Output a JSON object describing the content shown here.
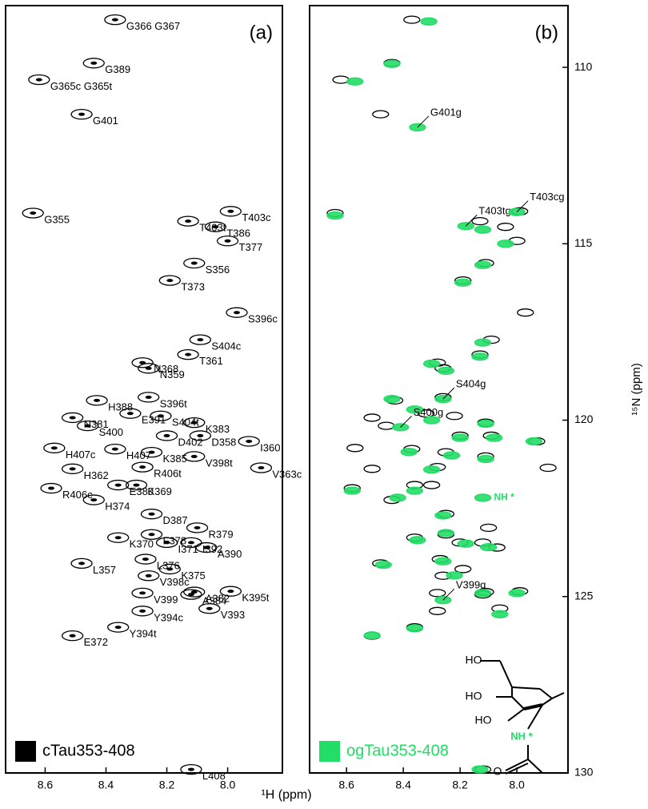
{
  "xlabel": "¹H (ppm)",
  "ylabel": "¹⁵N (ppm)",
  "chart_data": [
    {
      "type": "scatter",
      "panel_label": "(a)",
      "legend": "cTau353-408",
      "color": "#000000",
      "xlim": [
        8.73,
        7.82
      ],
      "ylim": [
        108.25,
        130.0
      ],
      "xticks": [
        8.6,
        8.4,
        8.2,
        {
          "value": 8,
          "label": "8.0"
        }
      ],
      "x": [
        8.37,
        8.44,
        8.62,
        8.48,
        8.64,
        7.99,
        8.13,
        8.04,
        8.0,
        8.11,
        8.19,
        7.97,
        8.09,
        8.13,
        8.28,
        8.26,
        8.43,
        8.26,
        8.32,
        8.22,
        8.11,
        8.51,
        8.46,
        8.2,
        8.09,
        7.93,
        8.57,
        8.37,
        8.25,
        8.11,
        8.51,
        8.28,
        7.89,
        8.58,
        8.36,
        8.3,
        8.44,
        8.25,
        8.25,
        8.2,
        8.1,
        8.12,
        8.36,
        8.07,
        8.27,
        8.19,
        8.48,
        8.26,
        8.11,
        7.99,
        8.28,
        8.12,
        8.28,
        8.06,
        8.36,
        8.51,
        8.12
      ],
      "y": [
        108.65,
        109.88,
        110.35,
        111.33,
        114.13,
        114.08,
        114.36,
        114.52,
        114.92,
        115.55,
        116.04,
        116.95,
        117.72,
        118.14,
        118.37,
        118.53,
        119.44,
        119.35,
        119.81,
        119.88,
        120.07,
        119.93,
        120.16,
        120.44,
        120.44,
        120.6,
        120.79,
        120.82,
        120.91,
        121.03,
        121.38,
        121.33,
        121.35,
        121.93,
        121.84,
        121.84,
        122.26,
        122.66,
        123.24,
        123.47,
        123.05,
        123.47,
        123.33,
        123.61,
        123.94,
        124.22,
        124.06,
        124.41,
        124.87,
        124.85,
        124.9,
        124.94,
        125.41,
        125.34,
        125.87,
        126.11,
        129.9
      ],
      "labels": [
        "G366 G367",
        "G389",
        "G365c G365t",
        "G401",
        "G355",
        "T403c",
        "T403t",
        "T386",
        "T377",
        "S356",
        "T373",
        "S396c",
        "S404c",
        "T361",
        "N368",
        "N359",
        "H388",
        "S396t",
        "E391",
        "S404t",
        "K383",
        "N381",
        "S400",
        "D402",
        "D358",
        "I360",
        "H407c",
        "H407",
        "K385",
        "V398t",
        "H362",
        "R406t",
        "V363c",
        "R406c",
        "E380",
        "K369",
        "H374",
        "D387",
        "F378",
        "I371",
        "R379",
        "I392",
        "K370",
        "A390",
        "L376",
        "K375",
        "L357",
        "V398c",
        "A382",
        "K395t",
        "V399",
        "A384",
        "Y394c",
        "V393",
        "Y394t",
        "E372",
        "L408"
      ]
    },
    {
      "type": "scatter",
      "panel_label": "(b)",
      "legend": "ogTau353-408",
      "color": "#22dd66",
      "xlim": [
        8.73,
        7.82
      ],
      "ylim": [
        108.25,
        130.0
      ],
      "xticks": [
        8.6,
        8.4,
        8.2,
        {
          "value": 8,
          "label": "8.0"
        }
      ],
      "yticks": [
        110,
        115,
        120,
        125,
        130
      ],
      "x": [
        8.31,
        8.44,
        8.57,
        8.35,
        8.64,
        8.18,
        8.0,
        8.12,
        8.04,
        8.12,
        8.19,
        8.12,
        8.13,
        8.3,
        8.25,
        8.44,
        8.26,
        8.36,
        8.41,
        8.3,
        8.11,
        8.2,
        8.08,
        7.94,
        8.38,
        8.23,
        8.11,
        8.3,
        8.58,
        8.12,
        8.36,
        8.42,
        8.26,
        8.25,
        8.18,
        8.1,
        8.35,
        8.26,
        8.47,
        8.22,
        8.26,
        8.12,
        8.0,
        8.06,
        8.36,
        8.51,
        8.13
      ],
      "y": [
        108.7,
        109.9,
        110.4,
        111.7,
        114.2,
        114.5,
        114.1,
        114.6,
        115.0,
        115.6,
        116.1,
        117.8,
        118.2,
        118.4,
        118.6,
        119.4,
        119.4,
        119.7,
        120.2,
        120.0,
        120.1,
        120.5,
        120.5,
        120.6,
        120.9,
        121.0,
        121.1,
        121.4,
        122.0,
        122.2,
        122.0,
        122.2,
        122.7,
        123.2,
        123.5,
        123.6,
        123.4,
        124.0,
        124.1,
        124.4,
        125.1,
        124.9,
        124.9,
        125.5,
        125.9,
        126.1,
        129.9
      ],
      "labels": [
        null,
        null,
        null,
        "G401g",
        null,
        "T403tg",
        "T403cg",
        null,
        null,
        null,
        null,
        null,
        null,
        null,
        null,
        null,
        "S404g",
        null,
        "S400g",
        null,
        null,
        null,
        null,
        null,
        null,
        null,
        null,
        null,
        null,
        "NH *",
        null,
        null,
        null,
        null,
        null,
        null,
        null,
        null,
        null,
        null,
        "V399g",
        null,
        null,
        null,
        null,
        null,
        null
      ],
      "structure_labels": [
        "HO",
        "HO",
        "HO",
        "NH *",
        "O"
      ]
    }
  ]
}
